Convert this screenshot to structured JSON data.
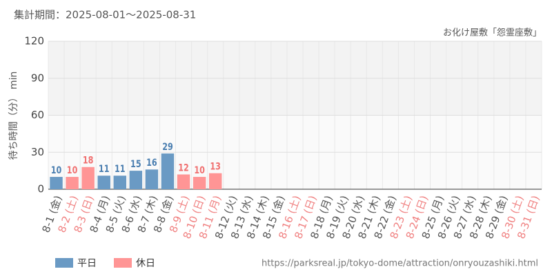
{
  "chart_data": {
    "type": "bar",
    "subtitle": "集計期間：2025-08-01～2025-08-31",
    "title": "お化け屋敷「怨霊座敷」",
    "y_label": "待ち時間（分） min",
    "source": "https://parksreal.jp/tokyo-dome/attraction/onryouzashiki.html",
    "categories": [
      "8-1 (金)",
      "8-2 (土)",
      "8-3 (日)",
      "8-4 (月)",
      "8-5 (火)",
      "8-6 (水)",
      "8-7 (木)",
      "8-8 (金)",
      "8-9 (土)",
      "8-10 (日)",
      "8-11 (月)",
      "8-12 (火)",
      "8-13 (水)",
      "8-14 (木)",
      "8-15 (金)",
      "8-16 (土)",
      "8-17 (日)",
      "8-18 (月)",
      "8-19 (火)",
      "8-20 (水)",
      "8-21 (木)",
      "8-22 (金)",
      "8-23 (土)",
      "8-24 (日)",
      "8-25 (月)",
      "8-26 (火)",
      "8-27 (水)",
      "8-28 (木)",
      "8-29 (金)",
      "8-30 (土)",
      "8-31 (日)"
    ],
    "category_colors": [
      "#555",
      "#f08080",
      "#f08080",
      "#555",
      "#555",
      "#555",
      "#555",
      "#555",
      "#f08080",
      "#f08080",
      "#f08080",
      "#555",
      "#555",
      "#555",
      "#555",
      "#f08080",
      "#f08080",
      "#555",
      "#555",
      "#555",
      "#555",
      "#555",
      "#f08080",
      "#f08080",
      "#555",
      "#555",
      "#555",
      "#555",
      "#555",
      "#f08080",
      "#f08080"
    ],
    "series": [
      {
        "name": "平日",
        "color": "#6a9ac4",
        "label_color": "#4a7eb0",
        "values": [
          10,
          null,
          null,
          11,
          11,
          15,
          16,
          29,
          null,
          null,
          null,
          null,
          null,
          null,
          null,
          null,
          null,
          null,
          null,
          null,
          null,
          null,
          null,
          null,
          null,
          null,
          null,
          null,
          null,
          null,
          null
        ]
      },
      {
        "name": "休日",
        "color": "#ff9595",
        "label_color": "#f07070",
        "values": [
          null,
          10,
          18,
          null,
          null,
          null,
          null,
          null,
          12,
          10,
          13,
          null,
          null,
          null,
          null,
          null,
          null,
          null,
          null,
          null,
          null,
          null,
          null,
          null,
          null,
          null,
          null,
          null,
          null,
          null,
          null
        ]
      }
    ],
    "ylim": [
      0,
      120
    ],
    "yticks": [
      0,
      30,
      60,
      90,
      120
    ],
    "grid": true
  }
}
